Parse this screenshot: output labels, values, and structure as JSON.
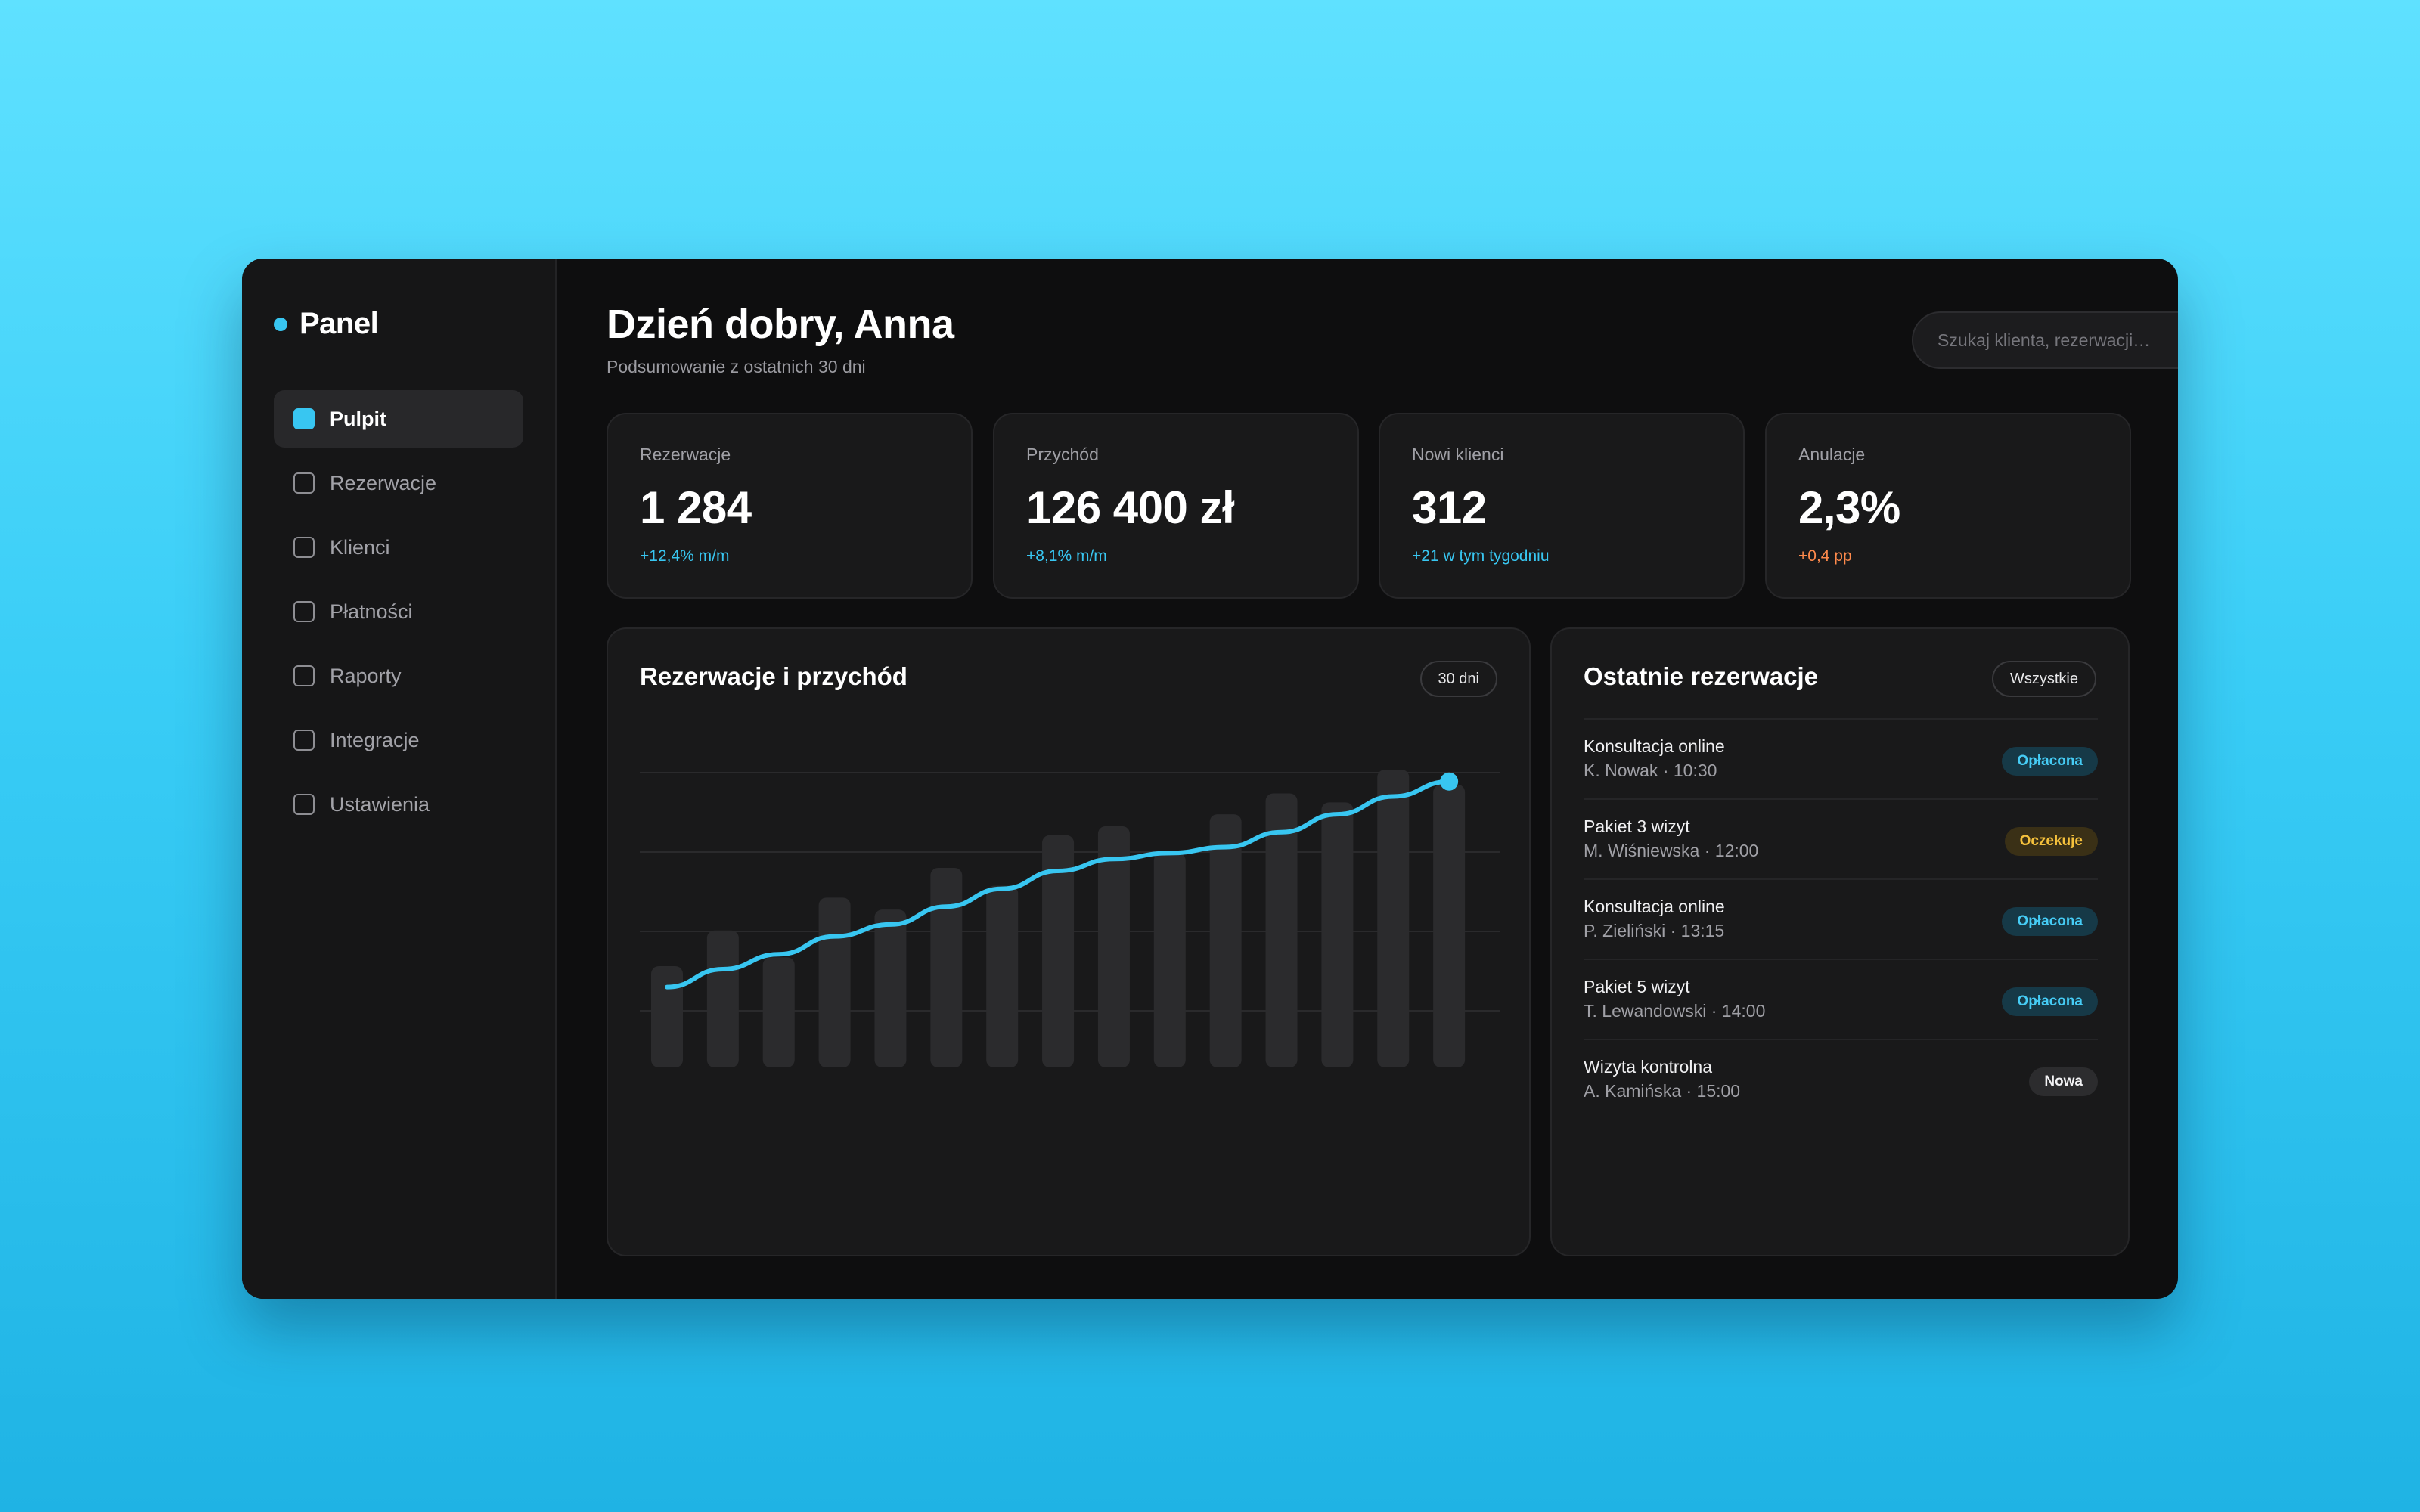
{
  "brand": {
    "label": "Panel",
    "dot_color": "#38c6f1"
  },
  "sidebar": {
    "items": [
      {
        "label": "Pulpit",
        "active": true
      },
      {
        "label": "Rezerwacje",
        "active": false
      },
      {
        "label": "Klienci",
        "active": false
      },
      {
        "label": "Płatności",
        "active": false
      },
      {
        "label": "Raporty",
        "active": false
      },
      {
        "label": "Integracje",
        "active": false
      },
      {
        "label": "Ustawienia",
        "active": false
      }
    ]
  },
  "header": {
    "greeting": "Dzień dobry, Anna",
    "subtitle": "Podsumowanie z ostatnich 30 dni",
    "search_placeholder": "Szukaj klienta, rezerwacji…"
  },
  "kpis": [
    {
      "label": "Rezerwacje",
      "value": "1 284",
      "delta": "+12,4% m/m",
      "delta_color": "#38c6f1"
    },
    {
      "label": "Przychód",
      "value": "126 400 zł",
      "delta": "+8,1% m/m",
      "delta_color": "#38c6f1"
    },
    {
      "label": "Nowi klienci",
      "value": "312",
      "delta": "+21 w tym tygodniu",
      "delta_color": "#38c6f1"
    },
    {
      "label": "Anulacje",
      "value": "2,3%",
      "delta": "+0,4 pp",
      "delta_color": "#ff8a4c"
    }
  ],
  "chart": {
    "title": "Rezerwacje i przychód",
    "range_label": "30 dni"
  },
  "chart_data": {
    "type": "bar",
    "title": "Rezerwacje i przychód",
    "xlabel": "",
    "ylabel": "",
    "ylim": [
      0,
      100
    ],
    "grid": true,
    "series": [
      {
        "type": "bar",
        "values": [
          34,
          46,
          37,
          57,
          53,
          67,
          61,
          78,
          81,
          72,
          85,
          92,
          89,
          100,
          95
        ]
      },
      {
        "type": "line",
        "values": [
          27,
          33,
          38,
          44,
          48,
          54,
          60,
          66,
          70,
          72,
          74,
          79,
          85,
          91,
          96
        ]
      }
    ],
    "colors": {
      "bars": "#2b2b2d",
      "line": "#38c6f1"
    }
  },
  "recent": {
    "title": "Ostatnie rezerwacje",
    "all_label": "Wszystkie",
    "rows": [
      {
        "title": "Konsultacja online",
        "sub": "K. Nowak · 10:30",
        "status": "Opłacona",
        "status_kind": "paid"
      },
      {
        "title": "Pakiet 3 wizyt",
        "sub": "M. Wiśniewska · 12:00",
        "status": "Oczekuje",
        "status_kind": "pending"
      },
      {
        "title": "Konsultacja online",
        "sub": "P. Zieliński · 13:15",
        "status": "Opłacona",
        "status_kind": "paid"
      },
      {
        "title": "Pakiet 5 wizyt",
        "sub": "T. Lewandowski · 14:00",
        "status": "Opłacona",
        "status_kind": "paid"
      },
      {
        "title": "Wizyta kontrolna",
        "sub": "A. Kamińska · 15:00",
        "status": "Nowa",
        "status_kind": "new"
      }
    ]
  },
  "status_colors": {
    "paid": {
      "bg": "#163947",
      "fg": "#46ccf5"
    },
    "pending": {
      "bg": "#3a3016",
      "fg": "#f5c13c"
    },
    "new": {
      "bg": "#2c2c2e",
      "fg": "#f2f2f4"
    }
  }
}
